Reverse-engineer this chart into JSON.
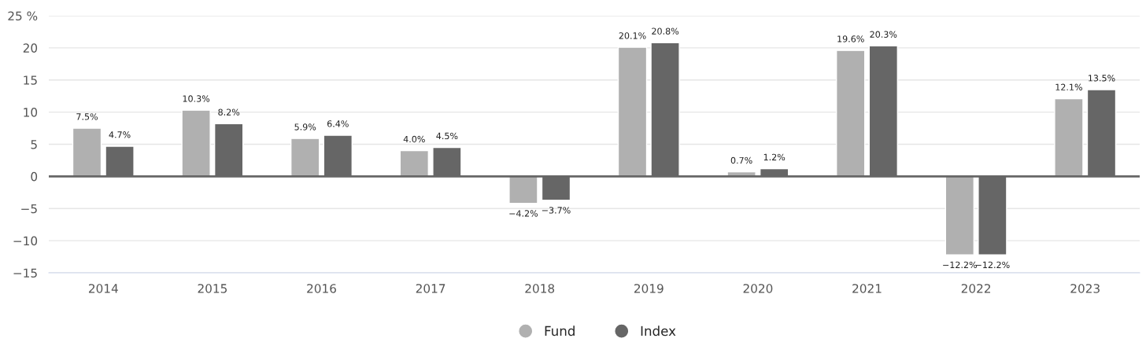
{
  "chart_data": {
    "type": "bar",
    "categories": [
      "2014",
      "2015",
      "2016",
      "2017",
      "2018",
      "2019",
      "2020",
      "2021",
      "2022",
      "2023"
    ],
    "series": [
      {
        "name": "Fund",
        "color": "#b0b0b0",
        "values": [
          7.5,
          10.3,
          5.9,
          4.0,
          -4.2,
          20.1,
          0.7,
          19.6,
          -12.2,
          12.1
        ],
        "value_labels": [
          "7.5%",
          "10.3%",
          "5.9%",
          "4.0%",
          "−4.2%",
          "20.1%",
          "0.7%",
          "19.6%",
          "−12.2%",
          "12.1%"
        ]
      },
      {
        "name": "Index",
        "color": "#666666",
        "values": [
          4.7,
          8.2,
          6.4,
          4.5,
          -3.7,
          20.8,
          1.2,
          20.3,
          -12.2,
          13.5
        ],
        "value_labels": [
          "4.7%",
          "8.2%",
          "6.4%",
          "4.5%",
          "−3.7%",
          "20.8%",
          "1.2%",
          "20.3%",
          "−12.2%",
          "13.5%"
        ]
      }
    ],
    "ylim": [
      -15,
      25
    ],
    "yticks": [
      {
        "value": -15,
        "label": "−15"
      },
      {
        "value": -10,
        "label": "−10"
      },
      {
        "value": -5,
        "label": "−5"
      },
      0,
      5,
      10,
      15,
      20,
      {
        "value": 25,
        "label": "25 %"
      }
    ],
    "ref_lines": [
      {
        "axis": "y",
        "value": 0,
        "color": "#666666"
      }
    ],
    "grid": "y",
    "legend": "bottom"
  }
}
